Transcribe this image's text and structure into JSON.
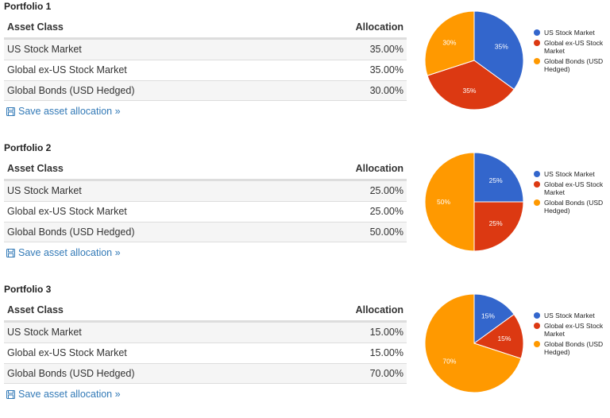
{
  "colors": {
    "us": "#3366cc",
    "global": "#dc3912",
    "bonds": "#ff9900",
    "link": "#337ab7"
  },
  "headers": {
    "asset_class": "Asset Class",
    "allocation": "Allocation"
  },
  "save_label": "Save asset allocation »",
  "legend": [
    "US Stock Market",
    "Global ex-US Stock Market",
    "Global Bonds (USD Hedged)"
  ],
  "portfolios": [
    {
      "title": "Portfolio 1",
      "rows": [
        {
          "asset": "US Stock Market",
          "allocation": "35.00%"
        },
        {
          "asset": "Global ex-US Stock Market",
          "allocation": "35.00%"
        },
        {
          "asset": "Global Bonds (USD Hedged)",
          "allocation": "30.00%"
        }
      ]
    },
    {
      "title": "Portfolio 2",
      "rows": [
        {
          "asset": "US Stock Market",
          "allocation": "25.00%"
        },
        {
          "asset": "Global ex-US Stock Market",
          "allocation": "25.00%"
        },
        {
          "asset": "Global Bonds (USD Hedged)",
          "allocation": "50.00%"
        }
      ]
    },
    {
      "title": "Portfolio 3",
      "rows": [
        {
          "asset": "US Stock Market",
          "allocation": "15.00%"
        },
        {
          "asset": "Global ex-US Stock Market",
          "allocation": "15.00%"
        },
        {
          "asset": "Global Bonds (USD Hedged)",
          "allocation": "70.00%"
        }
      ]
    }
  ],
  "chart_data": [
    {
      "type": "pie",
      "categories": [
        "US Stock Market",
        "Global ex-US Stock Market",
        "Global Bonds (USD Hedged)"
      ],
      "values": [
        35,
        35,
        30
      ],
      "labels": [
        "35%",
        "35%",
        "30%"
      ],
      "legend_position": "right"
    },
    {
      "type": "pie",
      "categories": [
        "US Stock Market",
        "Global ex-US Stock Market",
        "Global Bonds (USD Hedged)"
      ],
      "values": [
        25,
        25,
        50
      ],
      "labels": [
        "25%",
        "25%",
        "50%"
      ],
      "legend_position": "right"
    },
    {
      "type": "pie",
      "categories": [
        "US Stock Market",
        "Global ex-US Stock Market",
        "Global Bonds (USD Hedged)"
      ],
      "values": [
        15,
        15,
        70
      ],
      "labels": [
        "15%",
        "15%",
        "70%"
      ],
      "legend_position": "right"
    }
  ]
}
